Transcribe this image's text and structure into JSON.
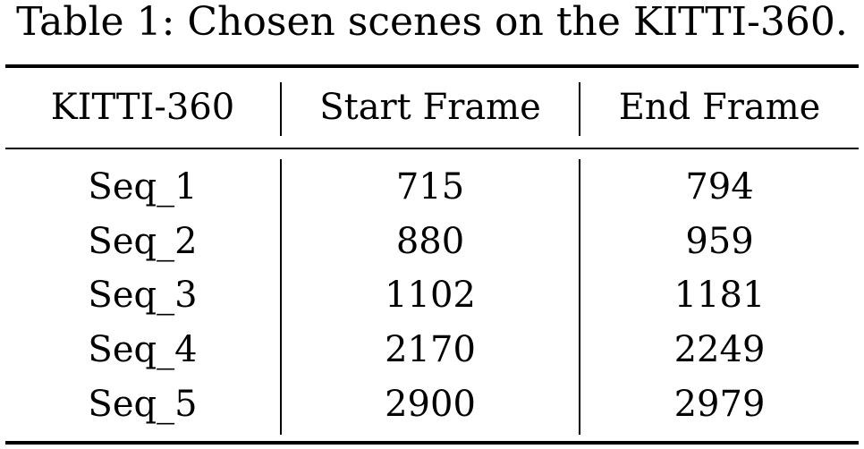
{
  "caption": "Table 1: Chosen scenes on the KITTI-360.",
  "table": {
    "headers": [
      "KITTI-360",
      "Start Frame",
      "End Frame"
    ],
    "rows": [
      [
        "Seq_1",
        "715",
        "794"
      ],
      [
        "Seq_2",
        "880",
        "959"
      ],
      [
        "Seq_3",
        "1102",
        "1181"
      ],
      [
        "Seq_4",
        "2170",
        "2249"
      ],
      [
        "Seq_5",
        "2900",
        "2979"
      ]
    ]
  }
}
